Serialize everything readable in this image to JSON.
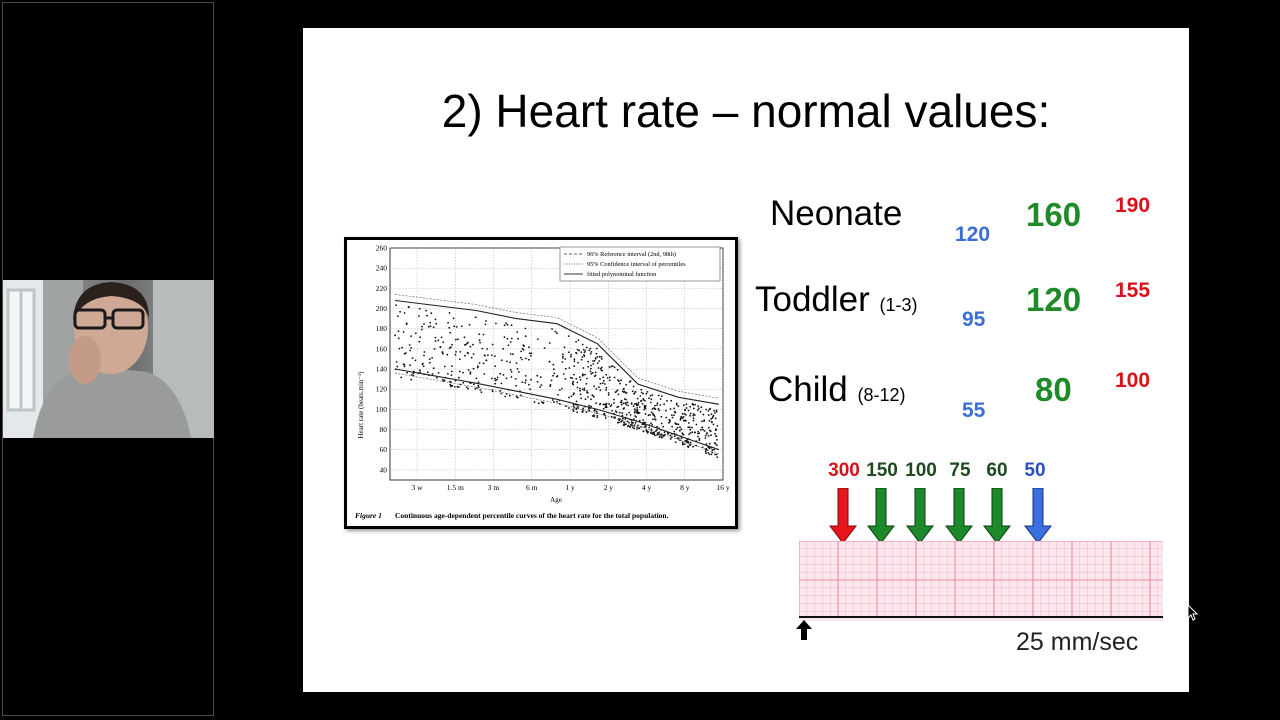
{
  "slide": {
    "title": "2) Heart rate – normal values:",
    "rows": [
      {
        "label": "Neonate",
        "range": "",
        "low": "120",
        "mid": "160",
        "high": "190"
      },
      {
        "label": "Toddler",
        "range": "(1-3)",
        "low": "95",
        "mid": "120",
        "high": "155"
      },
      {
        "label": "Child",
        "range": "(8-12)",
        "low": "55",
        "mid": "80",
        "high": "100"
      }
    ],
    "rate_markers": [
      "300",
      "150",
      "100",
      "75",
      "60",
      "50"
    ],
    "speed_label": "25 mm/sec",
    "colors": {
      "low": "#3b6fd6",
      "mid": "#1e8a28",
      "high": "#d8121a",
      "arrow_red": "#e8161c",
      "arrow_green": "#1c8a2a",
      "arrow_blue": "#3a6fe0"
    }
  },
  "figure": {
    "caption_label": "Figure 1",
    "caption_text": "Continuous age-dependent percentile curves of the heart rate for the total population.",
    "chart_data": {
      "type": "scatter",
      "ylabel": "Heart rate (beats.min⁻¹)",
      "xlabel": "Age",
      "y_ticks": [
        "260",
        "240",
        "220",
        "200",
        "180",
        "160",
        "140",
        "120",
        "100",
        "80",
        "60",
        "40"
      ],
      "x_ticks": [
        "3 w",
        "1.5 m",
        "3 m",
        "6 m",
        "1 y",
        "2 y",
        "4 y",
        "8 y",
        "16 y"
      ],
      "ylim": [
        30,
        260
      ],
      "legend": [
        "96% Reference interval (2nd, 98th)",
        "95% Confidence interval of percentiles",
        "fitted polynominal function"
      ],
      "legend_position": "top-right",
      "grid": true,
      "series": [
        {
          "name": "96% Reference interval (2nd, 98th)",
          "x": [
            0,
            1,
            2,
            3,
            4,
            5,
            6,
            7,
            8
          ],
          "y": [
            208,
            203,
            198,
            190,
            185,
            165,
            125,
            112,
            105
          ]
        },
        {
          "name": "fitted polynominal function",
          "x": [
            0,
            1,
            2,
            3,
            4,
            5,
            6,
            7,
            8
          ],
          "y": [
            140,
            133,
            126,
            118,
            110,
            100,
            88,
            74,
            60
          ]
        }
      ]
    }
  },
  "presenter": {
    "name": ""
  }
}
